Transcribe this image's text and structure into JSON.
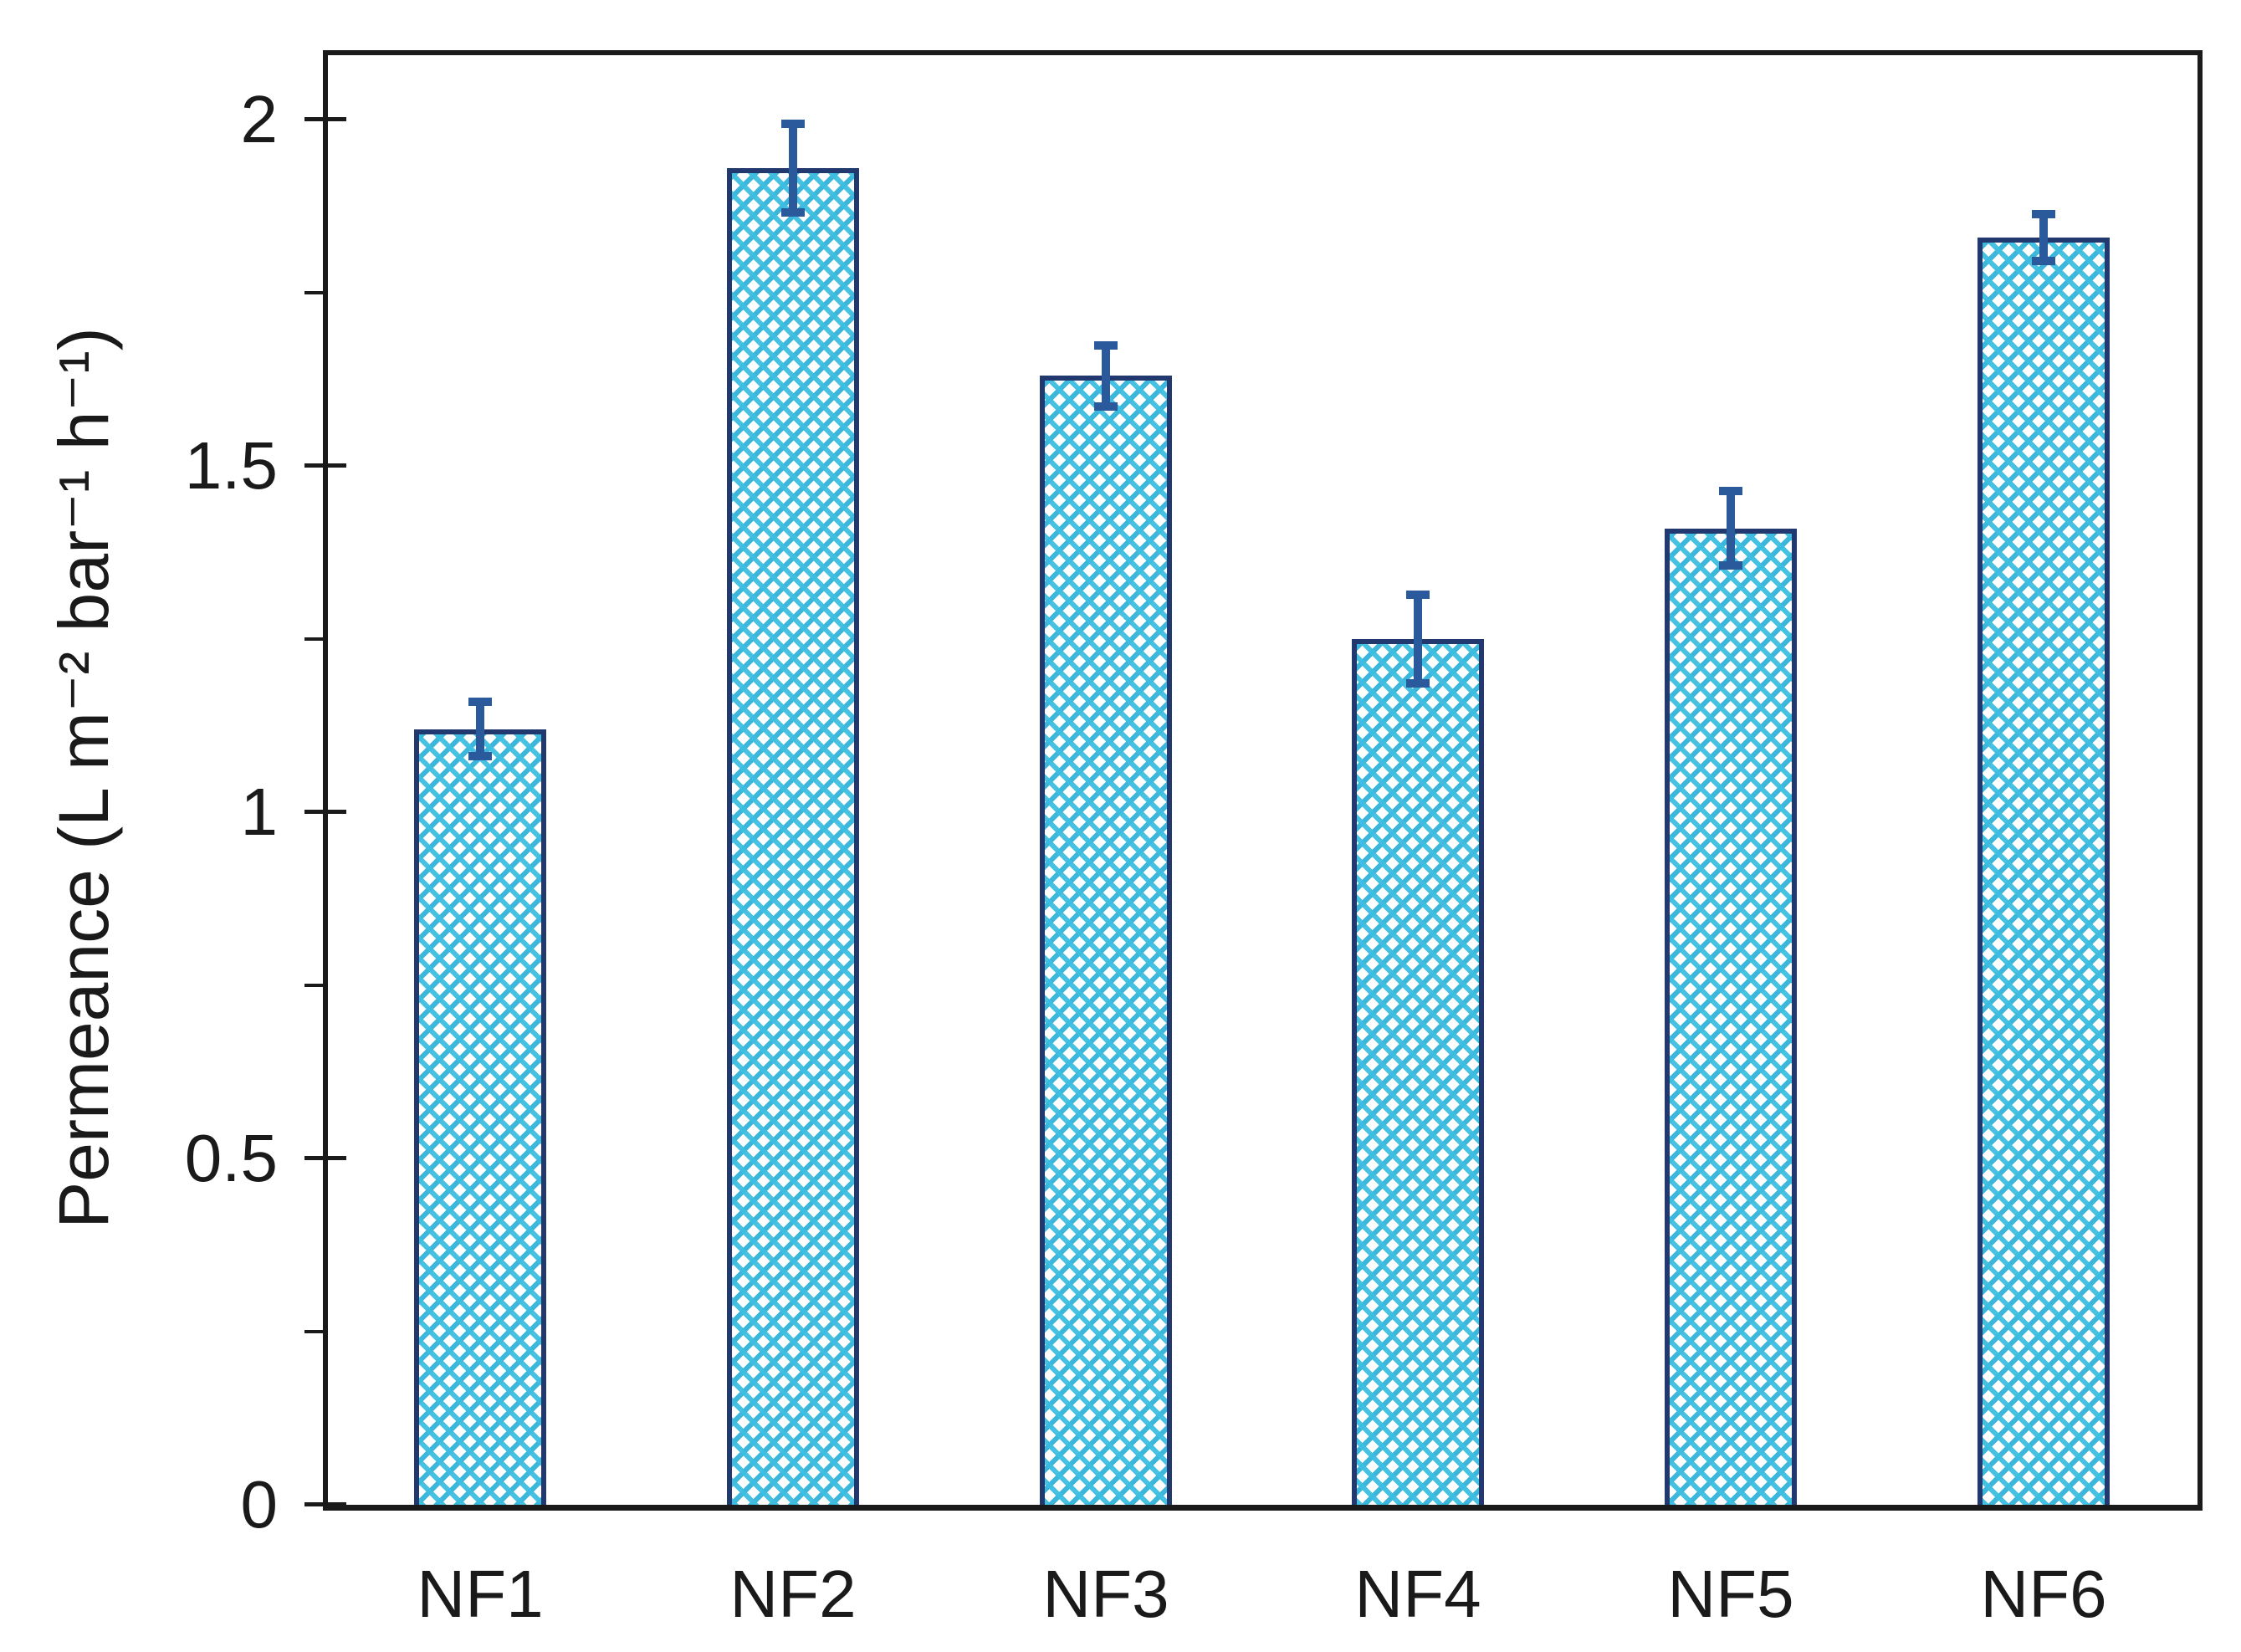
{
  "chart_data": {
    "type": "bar",
    "title": "",
    "categories": [
      "NF1",
      "NF2",
      "NF3",
      "NF4",
      "NF5",
      "NF6"
    ],
    "series": [
      {
        "name": "Permeance",
        "values": [
          1.12,
          1.93,
          1.63,
          1.25,
          1.41,
          1.83
        ],
        "errors": [
          0.045,
          0.07,
          0.05,
          0.07,
          0.06,
          0.04
        ]
      }
    ],
    "xlabel": "",
    "ylabel": "Permeance (L m⁻² bar⁻¹ h⁻¹)",
    "ylim": [
      0,
      2.1
    ],
    "yticks_major": [
      0,
      0.5,
      1,
      1.5,
      2
    ],
    "ytick_labels": [
      "0",
      "0.5",
      "1",
      "1.5",
      "2"
    ],
    "yticks_minor": [
      0.25,
      0.75,
      1.25,
      1.75
    ],
    "grid": false,
    "legend": "none",
    "bar_style": {
      "fill_pattern": "diagonal-crosshatch",
      "hatch_color": "#27aed6",
      "hatch_color_light": "#3dbee0",
      "border_color": "#21396f",
      "error_bar_color": "#2b5a9c"
    },
    "axis_color": "#1a1a1a"
  }
}
